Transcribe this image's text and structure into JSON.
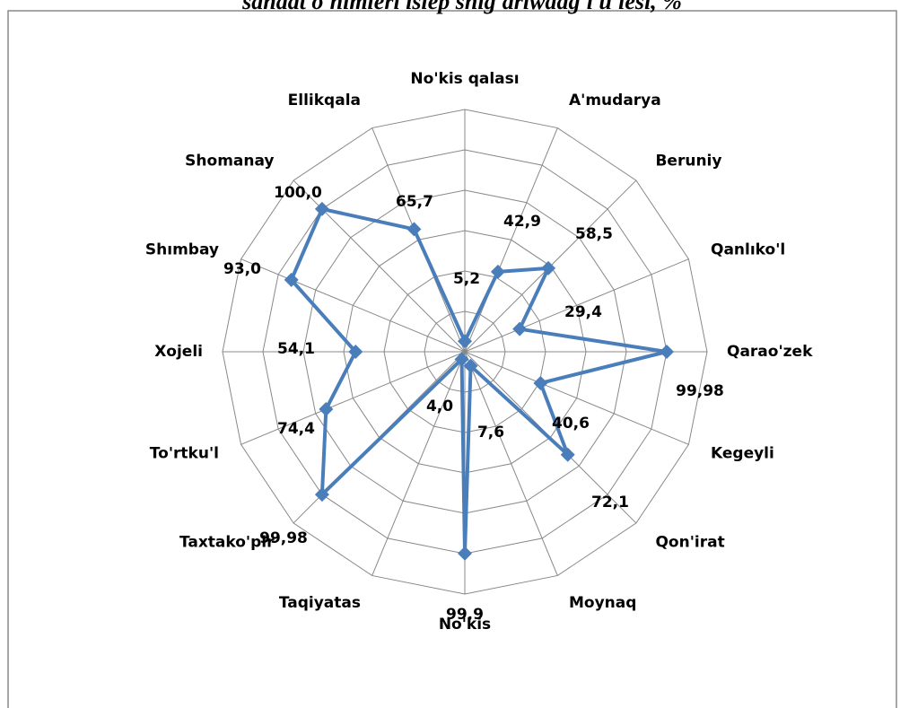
{
  "chart_data": {
    "type": "radar",
    "title": "sanaat o'nimleri islep shig'arıwdag'ı u'lesi, %",
    "categories": [
      "No'kis qalası",
      "A'mudarya",
      "Beruniy",
      "Qanlıko'l",
      "Qarao'zek",
      "Kegeyli",
      "Qon'irat",
      "Moynaq",
      "No'kis",
      "Taqiyatas",
      "Taxtako'pir",
      "To'rtku'l",
      "Xojeli",
      "Shımbay",
      "Shomanay",
      "Ellikqala"
    ],
    "values": [
      5.2,
      42.9,
      58.5,
      29.4,
      99.98,
      40.6,
      72.1,
      7.6,
      99.9,
      4.0,
      99.98,
      74.4,
      54.1,
      93.0,
      100.0,
      65.7
    ],
    "value_labels": [
      "5,2",
      "42,9",
      "58,5",
      "29,4",
      "99,98",
      "40,6",
      "72,1",
      "7,6",
      "99,9",
      "4,0",
      "99,98",
      "74,4",
      "54,1",
      "93,0",
      "100,0",
      "65,7"
    ],
    "color": "#4a7ebb",
    "ylim": [
      0,
      120
    ],
    "yticks": [
      20,
      40,
      60,
      80,
      100,
      120
    ],
    "grid": true
  }
}
